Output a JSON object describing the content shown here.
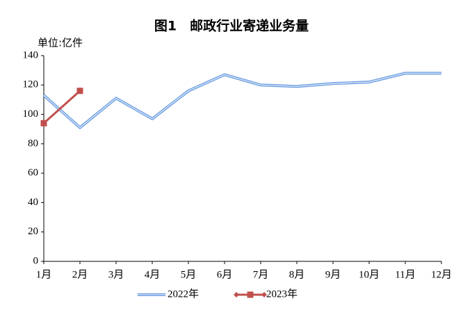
{
  "chart_data": {
    "type": "line",
    "title": "图1　邮政行业寄递业务量",
    "y_label": "单位:亿件",
    "categories": [
      "1月",
      "2月",
      "3月",
      "4月",
      "5月",
      "6月",
      "7月",
      "8月",
      "9月",
      "10月",
      "11月",
      "12月"
    ],
    "series": [
      {
        "name": "2022年",
        "color": "#6a9ce0",
        "values": [
          113,
          91,
          111,
          97,
          116,
          127,
          120,
          119,
          121,
          122,
          128,
          128
        ]
      },
      {
        "name": "2023年",
        "color": "#c0504d",
        "values": [
          94,
          116,
          null,
          null,
          null,
          null,
          null,
          null,
          null,
          null,
          null,
          null
        ]
      }
    ],
    "ylim": [
      0,
      140
    ],
    "yticks": [
      0,
      20,
      40,
      60,
      80,
      100,
      120,
      140
    ],
    "grid": false
  }
}
